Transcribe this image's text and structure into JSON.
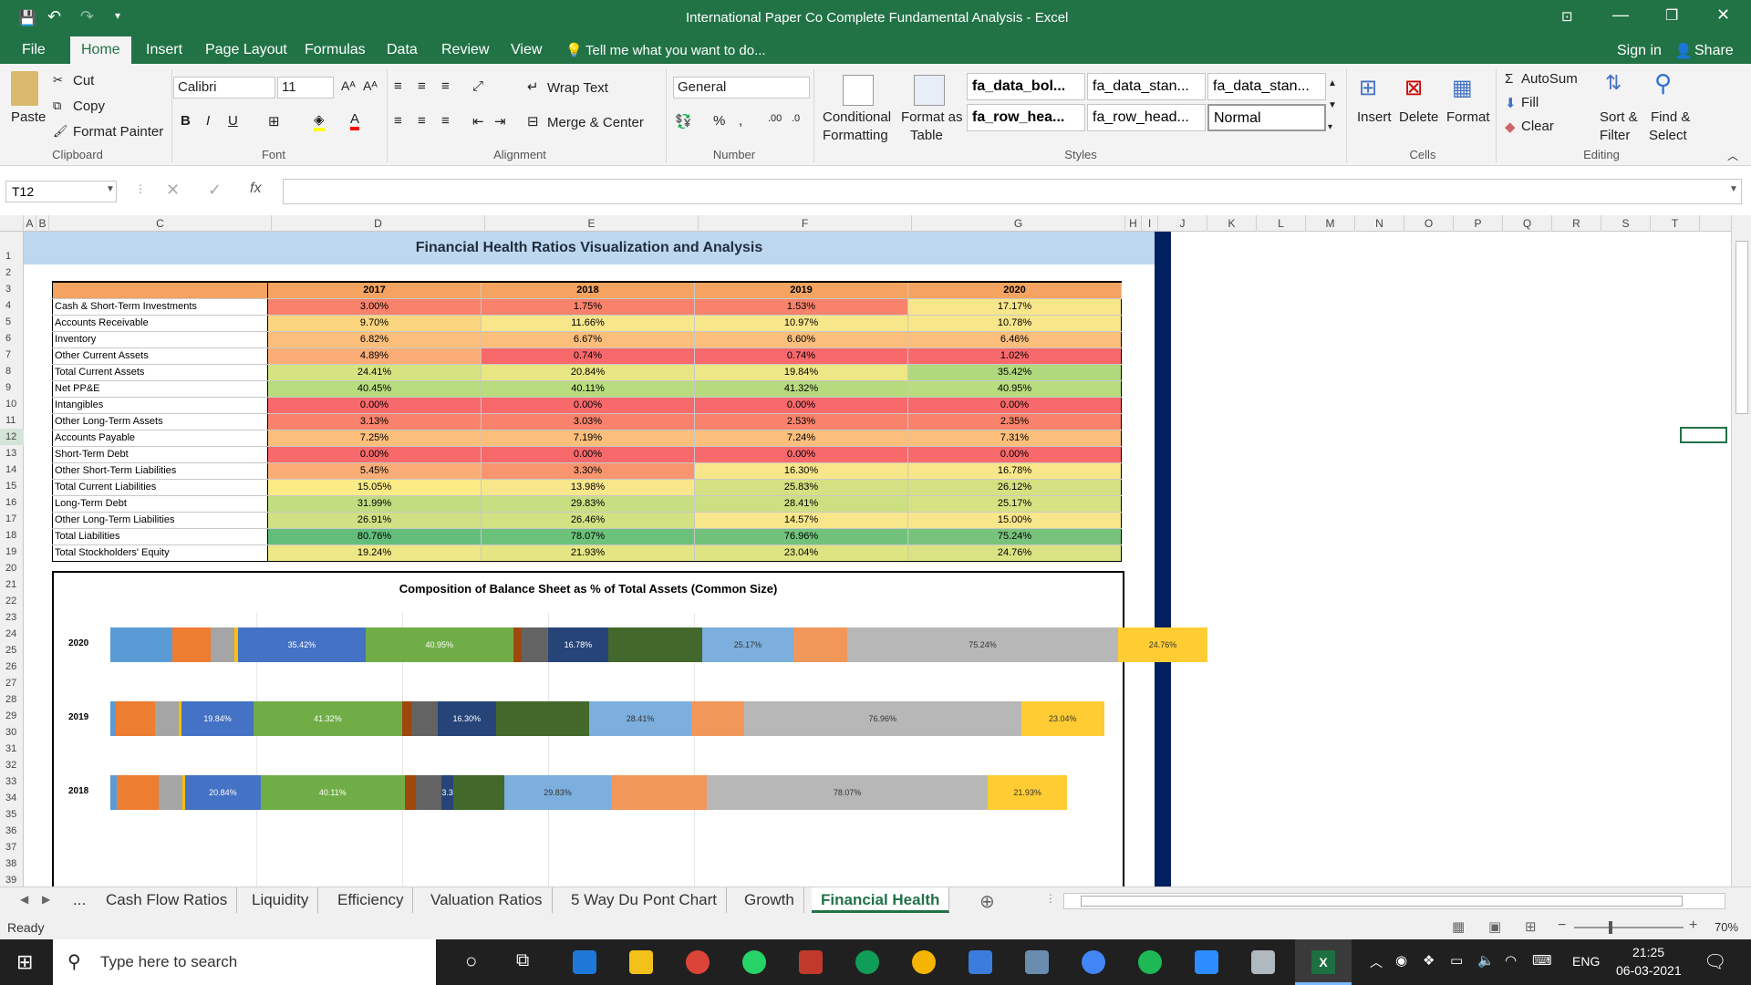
{
  "window": {
    "title": "International Paper Co Complete Fundamental Analysis - Excel"
  },
  "menu": {
    "tabs": [
      "File",
      "Home",
      "Insert",
      "Page Layout",
      "Formulas",
      "Data",
      "Review",
      "View"
    ],
    "tell_me": "Tell me what you want to do...",
    "sign_in": "Sign in",
    "share": "Share"
  },
  "ribbon": {
    "clipboard": {
      "paste": "Paste",
      "cut": "Cut",
      "copy": "Copy",
      "format_painter": "Format Painter",
      "group": "Clipboard"
    },
    "font": {
      "name": "Calibri",
      "size": "11",
      "group": "Font"
    },
    "alignment": {
      "wrap": "Wrap Text",
      "merge": "Merge & Center",
      "group": "Alignment"
    },
    "number": {
      "format": "General",
      "group": "Number"
    },
    "styles": {
      "conditional": "Conditional",
      "formatting": "Formatting",
      "format_as": "Format as",
      "table": "Table",
      "s1": "fa_data_bol...",
      "s2": "fa_data_stan...",
      "s3": "fa_data_stan...",
      "s4": "fa_row_hea...",
      "s5": "fa_row_head...",
      "s6": "Normal",
      "group": "Styles"
    },
    "cells": {
      "insert": "Insert",
      "delete": "Delete",
      "format": "Format",
      "group": "Cells"
    },
    "editing": {
      "autosum": "AutoSum",
      "fill": "Fill",
      "clear": "Clear",
      "sort": "Sort &",
      "filter": "Filter",
      "find": "Find &",
      "select": "Select",
      "group": "Editing"
    }
  },
  "formula_bar": {
    "name_box": "T12",
    "fx": "fx",
    "value": ""
  },
  "columns": [
    "A",
    "B",
    "C",
    "D",
    "E",
    "F",
    "G",
    "H",
    "I",
    "J",
    "K",
    "L",
    "M",
    "N",
    "O",
    "P",
    "Q",
    "R",
    "S",
    "T"
  ],
  "sheet": {
    "banner": "Financial Health Ratios Visualization and Analysis",
    "years": [
      "2017",
      "2018",
      "2019",
      "2020"
    ],
    "rows": [
      {
        "label": "Cash & Short-Term Investments",
        "values": [
          "3.00%",
          "1.75%",
          "1.53%",
          "17.17%"
        ],
        "colors": [
          "#f8826b",
          "#f8826b",
          "#f8826b",
          "#f8e68a"
        ]
      },
      {
        "label": "Accounts Receivable",
        "values": [
          "9.70%",
          "11.66%",
          "10.97%",
          "10.78%"
        ],
        "colors": [
          "#fbd57f",
          "#f8e68a",
          "#f8e68a",
          "#f8e68a"
        ]
      },
      {
        "label": "Inventory",
        "values": [
          "6.82%",
          "6.67%",
          "6.60%",
          "6.46%"
        ],
        "colors": [
          "#fbbe7b",
          "#fbbe7b",
          "#fbbe7b",
          "#fbbe7b"
        ]
      },
      {
        "label": "Other Current Assets",
        "values": [
          "4.89%",
          "0.74%",
          "0.74%",
          "1.02%"
        ],
        "colors": [
          "#fbad77",
          "#f8696b",
          "#f8696b",
          "#f8696b"
        ]
      },
      {
        "label": "Total Current Assets",
        "values": [
          "24.41%",
          "20.84%",
          "19.84%",
          "35.42%"
        ],
        "colors": [
          "#d6e381",
          "#e8e683",
          "#eee785",
          "#b0d87d"
        ]
      },
      {
        "label": "Net PP&E",
        "values": [
          "40.45%",
          "40.11%",
          "41.32%",
          "40.95%"
        ],
        "colors": [
          "#b8dc7e",
          "#b8dc7e",
          "#b6da7d",
          "#b8dc7e"
        ]
      },
      {
        "label": "Intangibles",
        "values": [
          "0.00%",
          "0.00%",
          "0.00%",
          "0.00%"
        ],
        "colors": [
          "#f8696b",
          "#f8696b",
          "#f8696b",
          "#f8696b"
        ]
      },
      {
        "label": "Other Long-Term Assets",
        "values": [
          "3.13%",
          "3.03%",
          "2.53%",
          "2.35%"
        ],
        "colors": [
          "#f8826b",
          "#f8826b",
          "#f8826b",
          "#f8826b"
        ]
      },
      {
        "label": "Accounts Payable",
        "values": [
          "7.25%",
          "7.19%",
          "7.24%",
          "7.31%"
        ],
        "colors": [
          "#fbbe7b",
          "#fbbe7b",
          "#fbbe7b",
          "#fbbe7b"
        ]
      },
      {
        "label": "Short-Term Debt",
        "values": [
          "0.00%",
          "0.00%",
          "0.00%",
          "0.00%"
        ],
        "colors": [
          "#f8696b",
          "#f8696b",
          "#f8696b",
          "#f8696b"
        ]
      },
      {
        "label": "Other Short-Term Liabilities",
        "values": [
          "5.45%",
          "3.30%",
          "16.30%",
          "16.78%"
        ],
        "colors": [
          "#fbad77",
          "#f8956f",
          "#f8e68a",
          "#f8e68a"
        ]
      },
      {
        "label": "Total Current Liabilities",
        "values": [
          "15.05%",
          "13.98%",
          "25.83%",
          "26.12%"
        ],
        "colors": [
          "#fbeb86",
          "#f8e68a",
          "#d4e081",
          "#d4e081"
        ]
      },
      {
        "label": "Long-Term Debt",
        "values": [
          "31.99%",
          "29.83%",
          "28.41%",
          "25.17%"
        ],
        "colors": [
          "#c2dd80",
          "#c8df81",
          "#cce081",
          "#d6e382"
        ]
      },
      {
        "label": "Other Long-Term Liabilities",
        "values": [
          "26.91%",
          "26.46%",
          "14.57%",
          "15.00%"
        ],
        "colors": [
          "#d0e082",
          "#d2e182",
          "#f8e68a",
          "#f8e68a"
        ]
      },
      {
        "label": "Total Liabilities",
        "values": [
          "80.76%",
          "78.07%",
          "76.96%",
          "75.24%"
        ],
        "colors": [
          "#63be7b",
          "#6cc17b",
          "#72c27c",
          "#78c37c"
        ]
      },
      {
        "label": "Total Stockholders' Equity",
        "values": [
          "19.24%",
          "21.93%",
          "23.04%",
          "24.76%"
        ],
        "colors": [
          "#eee785",
          "#e4e583",
          "#dfe482",
          "#dae383"
        ]
      }
    ]
  },
  "chart_data": {
    "type": "bar",
    "title": "Composition of Balance Sheet as % of Total Assets (Common Size)",
    "categories": [
      "2020",
      "2019",
      "2018"
    ],
    "series": [
      {
        "values": [
          17.17,
          1.53,
          1.75
        ],
        "color": "#5b9bd5"
      },
      {
        "values": [
          10.78,
          10.97,
          11.66
        ],
        "color": "#ed7d31"
      },
      {
        "values": [
          6.46,
          6.6,
          6.67
        ],
        "color": "#a5a5a5"
      },
      {
        "values": [
          1.02,
          0.74,
          0.74
        ],
        "color": "#ffc000"
      },
      {
        "values": [
          35.42,
          19.84,
          20.84
        ],
        "color": "#4472c4"
      },
      {
        "values": [
          40.95,
          41.32,
          40.11
        ],
        "color": "#70ad47"
      },
      {
        "values": [
          0.0,
          0.0,
          0.0
        ],
        "color": "#264478"
      },
      {
        "values": [
          2.35,
          2.53,
          3.03
        ],
        "color": "#9e480e"
      },
      {
        "values": [
          7.31,
          7.24,
          7.19
        ],
        "color": "#636363"
      },
      {
        "values": [
          0.0,
          0.0,
          0.0
        ],
        "color": "#997300"
      },
      {
        "values": [
          16.78,
          16.3,
          3.3
        ],
        "color": "#264478"
      },
      {
        "values": [
          26.12,
          25.83,
          13.98
        ],
        "color": "#43682b"
      },
      {
        "values": [
          25.17,
          28.41,
          29.83
        ],
        "color": "#7cafdd"
      },
      {
        "values": [
          15.0,
          14.57,
          26.46
        ],
        "color": "#f1975a"
      },
      {
        "values": [
          75.24,
          76.96,
          78.07
        ],
        "color": "#b7b7b7"
      },
      {
        "values": [
          24.76,
          23.04,
          21.93
        ],
        "color": "#ffcd33"
      }
    ],
    "labeled_series": [
      4,
      5,
      10,
      12,
      14,
      15
    ],
    "labels": [
      [
        "35.42%",
        "40.95%",
        "16.78%",
        "25.17%",
        "75.24%",
        "24.76%"
      ],
      [
        "19.84%",
        "41.32%",
        "16.30%",
        "28.41%",
        "76.96%",
        "23.04%"
      ],
      [
        "20.84%",
        "40.11%",
        "3.30%",
        "29.83%",
        "78.07%",
        "21.93%"
      ]
    ]
  },
  "sheet_tabs": [
    "...",
    "Cash Flow Ratios",
    "Liquidity",
    "Efficiency",
    "Valuation Ratios",
    "5 Way Du Pont Chart",
    "Growth",
    "Financial Health"
  ],
  "status": {
    "ready": "Ready",
    "zoom": "70%"
  },
  "taskbar": {
    "search": "Type here to search",
    "lang": "ENG",
    "time": "21:25",
    "date": "06-03-2021"
  }
}
